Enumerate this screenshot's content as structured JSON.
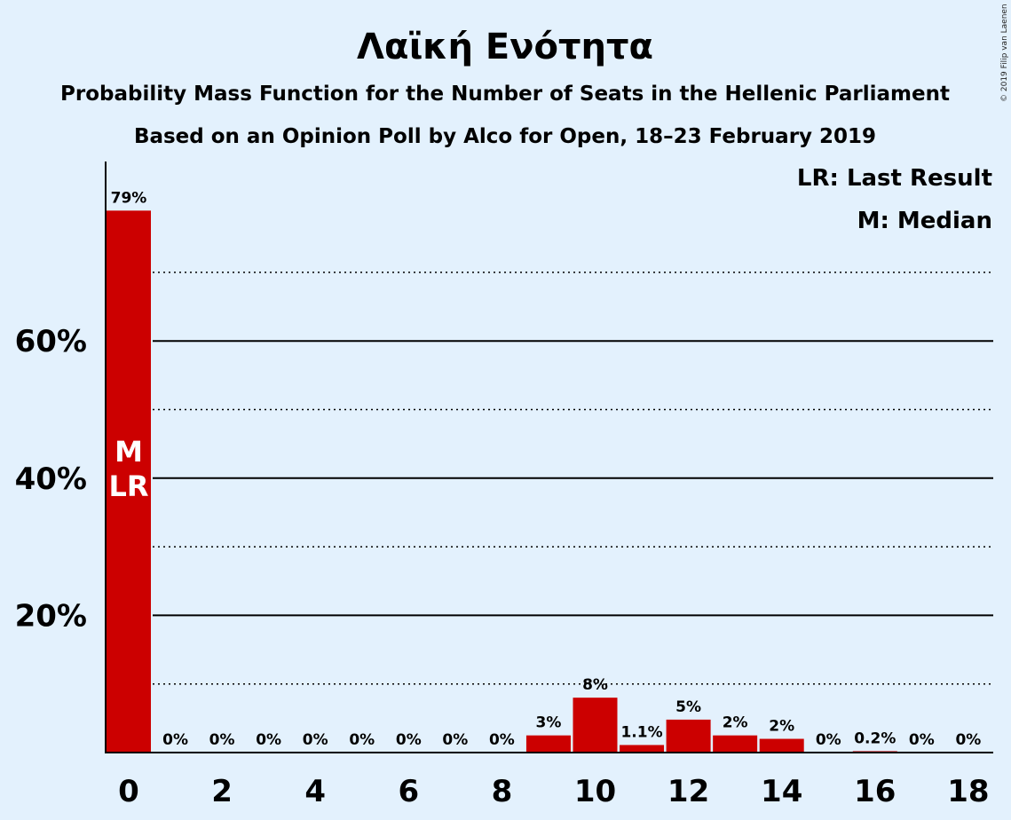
{
  "chart_data": {
    "type": "bar",
    "title": "Λαϊκή Ενότητα",
    "subtitle_line1": "Probability Mass Function for the Number of Seats in the Hellenic Parliament",
    "subtitle_line2": "Based on an Opinion Poll by Alco for Open, 18–23 February 2019",
    "copyright": "© 2019 Filip van Laenen",
    "categories": [
      0,
      1,
      2,
      3,
      4,
      5,
      6,
      7,
      8,
      9,
      10,
      11,
      12,
      13,
      14,
      15,
      16,
      17,
      18
    ],
    "values": [
      79,
      0,
      0,
      0,
      0,
      0,
      0,
      0,
      0,
      2.5,
      8,
      1.1,
      4.8,
      2.5,
      2,
      0,
      0.2,
      0,
      0
    ],
    "value_labels": [
      "79%",
      "0%",
      "0%",
      "0%",
      "0%",
      "0%",
      "0%",
      "0%",
      "0%",
      "3%",
      "8%",
      "1.1%",
      "5%",
      "2%",
      "2%",
      "0%",
      "0.2%",
      "0%",
      "0%"
    ],
    "x_tick_labels": [
      "0",
      "2",
      "4",
      "6",
      "8",
      "10",
      "12",
      "14",
      "16",
      "18"
    ],
    "y_tick_labels": [
      "20%",
      "40%",
      "60%"
    ],
    "y_solid_gridlines": [
      20,
      40,
      60
    ],
    "y_dotted_gridlines": [
      10,
      30,
      50,
      70
    ],
    "ylim": [
      0,
      86
    ],
    "legend": [
      "LR: Last Result",
      "M: Median"
    ],
    "median_seat": 0,
    "last_result_seat": 0,
    "bar_markers": [
      "M",
      "LR"
    ],
    "bar_color": "#cc0000",
    "background_color": "#e3f1fd"
  }
}
